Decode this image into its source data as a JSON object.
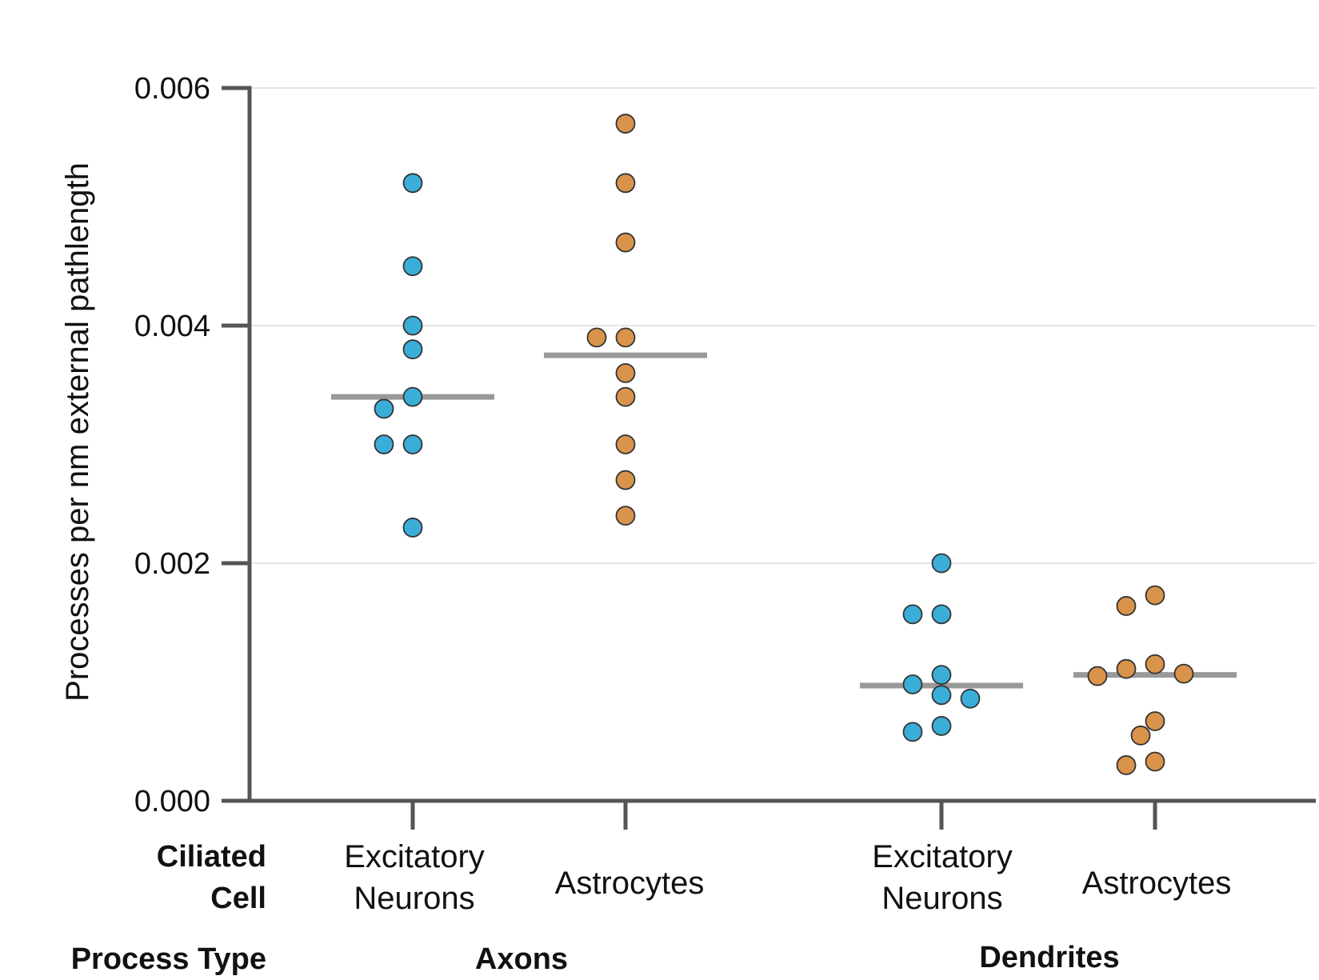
{
  "chart_data": {
    "type": "scatter",
    "ylabel": "Processes per  nm external pathlength",
    "ylim": [
      0,
      0.006
    ],
    "yticks": [
      "0.000",
      "0.002",
      "0.004",
      "0.006"
    ],
    "ytick_values": [
      0,
      0.002,
      0.004,
      0.006
    ],
    "grid": true,
    "row_labels": {
      "cell_line1": "Ciliated",
      "cell_line2": "Cell",
      "process": "Process Type"
    },
    "groups": [
      {
        "name": "Axons",
        "categories": [
          0,
          1
        ]
      },
      {
        "name": "Dendrites",
        "categories": [
          2,
          3
        ]
      }
    ],
    "categories": [
      {
        "label_line1": "Excitatory",
        "label_line2": "Neurons",
        "color": "#3aaed8",
        "median": 0.0034,
        "points": [
          0.0052,
          0.0045,
          0.004,
          0.0038,
          0.0034,
          0.0033,
          0.003,
          0.003,
          0.0023
        ]
      },
      {
        "label_line1": "Astrocytes",
        "label_line2": "",
        "color": "#d9934a",
        "median": 0.00375,
        "points": [
          0.0057,
          0.0052,
          0.0047,
          0.0039,
          0.0039,
          0.0036,
          0.0034,
          0.003,
          0.0027,
          0.0024
        ]
      },
      {
        "label_line1": "Excitatory",
        "label_line2": "Neurons",
        "color": "#3aaed8",
        "median": 0.00097,
        "points": [
          0.002,
          0.00157,
          0.00157,
          0.00106,
          0.00098,
          0.00089,
          0.00086,
          0.00063,
          0.00058
        ]
      },
      {
        "label_line1": "Astrocytes",
        "label_line2": "",
        "color": "#d9934a",
        "median": 0.00106,
        "points": [
          0.00173,
          0.00164,
          0.00115,
          0.00111,
          0.00107,
          0.00105,
          0.00067,
          0.00055,
          0.00033,
          0.0003
        ]
      }
    ]
  }
}
